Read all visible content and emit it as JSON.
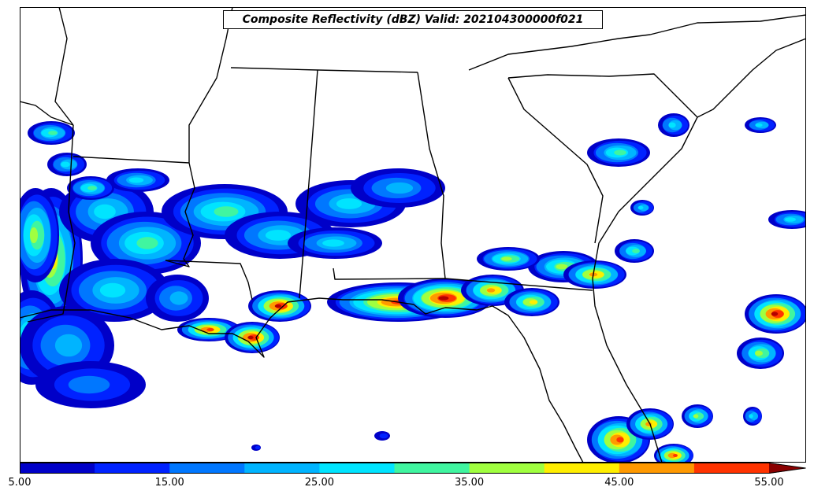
{
  "map": {
    "title": "Composite Reflectivity (dBZ) Valid: 202104300000f021",
    "field": "composite-reflectivity",
    "region": "southeastern-united-states",
    "colors": {
      "background": "#ffffff",
      "borders": "#000000"
    }
  },
  "colorbar": {
    "levels": [
      5,
      10,
      15,
      20,
      25,
      30,
      35,
      40,
      45,
      50,
      55
    ],
    "colors": [
      "#0000c8",
      "#0022ff",
      "#0077ff",
      "#00b4ff",
      "#00e4ff",
      "#40f5a0",
      "#a0ff40",
      "#ffee00",
      "#ff9900",
      "#ff3300",
      "#b40000",
      "#8a0000"
    ],
    "extend": "max",
    "tick_labels": [
      "5.00",
      "15.00",
      "25.00",
      "35.00",
      "45.00",
      "55.00"
    ],
    "tick_values": [
      5,
      15,
      25,
      35,
      45,
      55
    ]
  }
}
